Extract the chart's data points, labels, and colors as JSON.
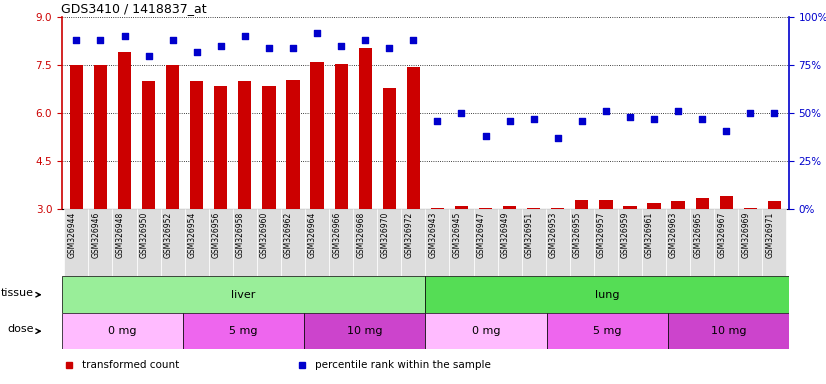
{
  "title": "GDS3410 / 1418837_at",
  "samples": [
    "GSM326944",
    "GSM326946",
    "GSM326948",
    "GSM326950",
    "GSM326952",
    "GSM326954",
    "GSM326956",
    "GSM326958",
    "GSM326960",
    "GSM326962",
    "GSM326964",
    "GSM326966",
    "GSM326968",
    "GSM326970",
    "GSM326972",
    "GSM326943",
    "GSM326945",
    "GSM326947",
    "GSM326949",
    "GSM326951",
    "GSM326953",
    "GSM326955",
    "GSM326957",
    "GSM326959",
    "GSM326961",
    "GSM326963",
    "GSM326965",
    "GSM326967",
    "GSM326969",
    "GSM326971"
  ],
  "bar_values": [
    7.5,
    7.5,
    7.9,
    7.0,
    7.5,
    7.0,
    6.85,
    7.0,
    6.85,
    7.05,
    7.6,
    7.55,
    8.05,
    6.8,
    7.45,
    3.05,
    3.1,
    3.05,
    3.1,
    3.05,
    3.05,
    3.3,
    3.3,
    3.1,
    3.2,
    3.25,
    3.35,
    3.4,
    3.05,
    3.25
  ],
  "scatter_values": [
    88,
    88,
    90,
    80,
    88,
    82,
    85,
    90,
    84,
    84,
    92,
    85,
    88,
    84,
    88,
    46,
    50,
    38,
    46,
    47,
    37,
    46,
    51,
    48,
    47,
    51,
    47,
    41,
    50,
    50
  ],
  "bar_baseline": 3,
  "ymin": 3,
  "ymax": 9,
  "yticks": [
    3,
    4.5,
    6,
    7.5,
    9
  ],
  "y2min": 0,
  "y2max": 100,
  "y2ticks": [
    0,
    25,
    50,
    75,
    100
  ],
  "bar_color": "#cc0000",
  "scatter_color": "#0000cc",
  "tissue_liver_color": "#99ee99",
  "tissue_lung_color": "#55dd55",
  "dose_0mg_color": "#ffbbff",
  "dose_5mg_color": "#ee66ee",
  "dose_10mg_color": "#cc44cc",
  "tissue_groups": [
    {
      "label": "liver",
      "start": 0,
      "end": 15,
      "color_key": "tissue_liver_color"
    },
    {
      "label": "lung",
      "start": 15,
      "end": 30,
      "color_key": "tissue_lung_color"
    }
  ],
  "dose_groups": [
    {
      "label": "0 mg",
      "start": 0,
      "end": 5,
      "color_key": "dose_0mg_color"
    },
    {
      "label": "5 mg",
      "start": 5,
      "end": 10,
      "color_key": "dose_5mg_color"
    },
    {
      "label": "10 mg",
      "start": 10,
      "end": 15,
      "color_key": "dose_10mg_color"
    },
    {
      "label": "0 mg",
      "start": 15,
      "end": 20,
      "color_key": "dose_0mg_color"
    },
    {
      "label": "5 mg",
      "start": 20,
      "end": 25,
      "color_key": "dose_5mg_color"
    },
    {
      "label": "10 mg",
      "start": 25,
      "end": 30,
      "color_key": "dose_10mg_color"
    }
  ],
  "xlabel_bg_color": "#dddddd",
  "legend_items": [
    {
      "label": "transformed count",
      "color": "#cc0000"
    },
    {
      "label": "percentile rank within the sample",
      "color": "#0000cc"
    }
  ]
}
